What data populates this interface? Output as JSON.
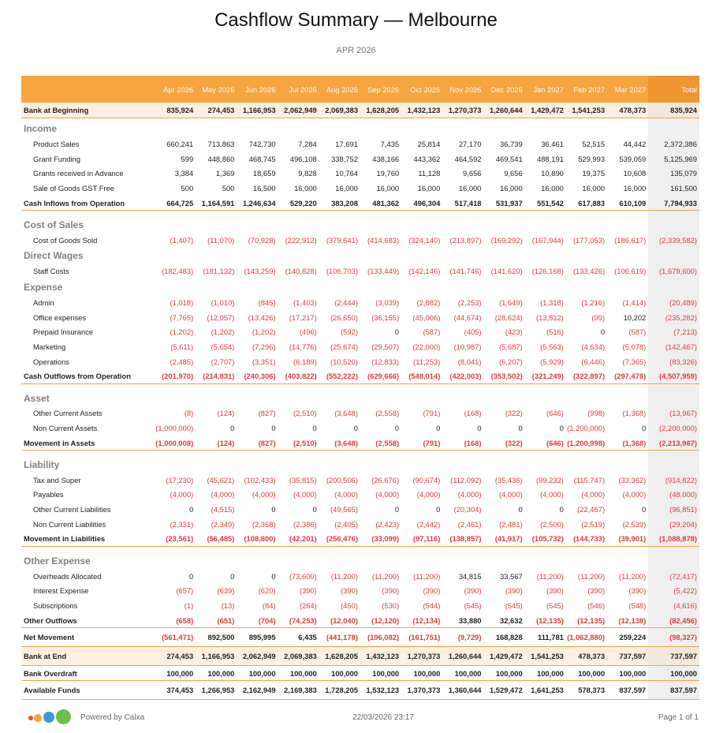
{
  "header": {
    "title": "Cashflow Summary — Melbourne",
    "subtitle": "APR 2026"
  },
  "table": {
    "columns": [
      "Apr 2026",
      "May 2026",
      "Jun 2026",
      "Jul 2026",
      "Aug 2026",
      "Sep 2026",
      "Oct 2026",
      "Nov 2026",
      "Dec 2026",
      "Jan 2027",
      "Feb 2027",
      "Mar 2027",
      "Total"
    ],
    "opening": {
      "label": "Bank at Beginning",
      "values": [
        "835,924",
        "274,453",
        "1,166,953",
        "2,062,949",
        "2,069,383",
        "1,628,205",
        "1,432,123",
        "1,270,373",
        "1,260,644",
        "1,429,472",
        "1,541,253",
        "478,373",
        "835,924"
      ]
    },
    "groups": [
      {
        "sections": [
          {
            "title": "Income",
            "rows": [
              {
                "label": "Product Sales",
                "values": [
                  "660,241",
                  "713,863",
                  "742,730",
                  "7,284",
                  "17,691",
                  "7,435",
                  "25,814",
                  "27,170",
                  "36,739",
                  "36,461",
                  "52,515",
                  "44,442",
                  "2,372,386"
                ]
              },
              {
                "label": "Grant Funding",
                "values": [
                  "599",
                  "448,860",
                  "468,745",
                  "496,108",
                  "338,752",
                  "438,166",
                  "443,362",
                  "464,592",
                  "469,541",
                  "488,191",
                  "529,993",
                  "539,059",
                  "5,125,969"
                ]
              },
              {
                "label": "Grants received in Advance",
                "values": [
                  "3,384",
                  "1,369",
                  "18,659",
                  "9,828",
                  "10,764",
                  "19,760",
                  "11,128",
                  "9,656",
                  "9,656",
                  "10,890",
                  "19,375",
                  "10,608",
                  "135,079"
                ]
              },
              {
                "label": "Sale of Goods GST Free",
                "values": [
                  "500",
                  "500",
                  "16,500",
                  "16,000",
                  "16,000",
                  "16,000",
                  "16,000",
                  "16,000",
                  "16,000",
                  "16,000",
                  "16,000",
                  "16,000",
                  "161,500"
                ]
              }
            ]
          }
        ],
        "total": {
          "label": "Cash Inflows from Operation",
          "values": [
            "664,725",
            "1,164,591",
            "1,246,634",
            "529,220",
            "383,208",
            "481,362",
            "496,304",
            "517,418",
            "531,937",
            "551,542",
            "617,883",
            "610,109",
            "7,794,933"
          ]
        }
      },
      {
        "sections": [
          {
            "title": "Cost of Sales",
            "rows": [
              {
                "label": "Cost of Goods Sold",
                "values": [
                  "(1,407)",
                  "(11,070)",
                  "(70,928)",
                  "(222,912)",
                  "(379,641)",
                  "(414,683)",
                  "(324,140)",
                  "(213,897)",
                  "(169,292)",
                  "(167,944)",
                  "(177,053)",
                  "(186,617)",
                  "(2,339,582)"
                ]
              }
            ]
          },
          {
            "title": "Direct Wages",
            "rows": [
              {
                "label": "Staff Costs",
                "values": [
                  "(182,483)",
                  "(181,132)",
                  "(143,259)",
                  "(140,828)",
                  "(106,703)",
                  "(133,449)",
                  "(142,146)",
                  "(141,746)",
                  "(141,620)",
                  "(126,168)",
                  "(133,426)",
                  "(106,619)",
                  "(1,679,600)"
                ]
              }
            ]
          },
          {
            "title": "Expense",
            "rows": [
              {
                "label": "Admin",
                "values": [
                  "(1,018)",
                  "(1,010)",
                  "(845)",
                  "(1,403)",
                  "(2,444)",
                  "(3,039)",
                  "(2,882)",
                  "(2,253)",
                  "(1,649)",
                  "(1,318)",
                  "(1,216)",
                  "(1,414)",
                  "(20,489)"
                ]
              },
              {
                "label": "Office expenses",
                "values": [
                  "(7,765)",
                  "(12,057)",
                  "(13,426)",
                  "(17,217)",
                  "(26,650)",
                  "(36,155)",
                  "(45,006)",
                  "(44,674)",
                  "(28,624)",
                  "(13,812)",
                  "(99)",
                  "10,202",
                  "(235,282)"
                ]
              },
              {
                "label": "Prepaid Insurance",
                "values": [
                  "(1,202)",
                  "(1,202)",
                  "(1,202)",
                  "(496)",
                  "(592)",
                  "0",
                  "(587)",
                  "(405)",
                  "(423)",
                  "(516)",
                  "0",
                  "(587)",
                  "(7,213)"
                ]
              },
              {
                "label": "Marketing",
                "values": [
                  "(5,611)",
                  "(5,654)",
                  "(7,296)",
                  "(14,776)",
                  "(25,674)",
                  "(29,507)",
                  "(22,000)",
                  "(10,987)",
                  "(5,687)",
                  "(5,563)",
                  "(4,634)",
                  "(5,078)",
                  "(142,467)"
                ]
              },
              {
                "label": "Operations",
                "values": [
                  "(2,485)",
                  "(2,707)",
                  "(3,351)",
                  "(6,189)",
                  "(10,520)",
                  "(12,833)",
                  "(11,253)",
                  "(8,041)",
                  "(6,207)",
                  "(5,929)",
                  "(6,446)",
                  "(7,365)",
                  "(83,326)"
                ]
              }
            ]
          }
        ],
        "total": {
          "label": "Cash Outflows from Operation",
          "values": [
            "(201,970)",
            "(214,831)",
            "(240,306)",
            "(403,822)",
            "(552,222)",
            "(629,666)",
            "(548,014)",
            "(422,003)",
            "(353,502)",
            "(321,249)",
            "(322,897)",
            "(297,478)",
            "(4,507,959)"
          ]
        }
      },
      {
        "sections": [
          {
            "title": "Asset",
            "rows": [
              {
                "label": "Other Current Assets",
                "values": [
                  "(8)",
                  "(124)",
                  "(827)",
                  "(2,510)",
                  "(3,648)",
                  "(2,558)",
                  "(791)",
                  "(168)",
                  "(322)",
                  "(646)",
                  "(998)",
                  "(1,368)",
                  "(13,967)"
                ]
              },
              {
                "label": "Non Current Assets",
                "values": [
                  "(1,000,000)",
                  "0",
                  "0",
                  "0",
                  "0",
                  "0",
                  "0",
                  "0",
                  "0",
                  "0",
                  "(1,200,000)",
                  "0",
                  "(2,200,000)"
                ]
              }
            ]
          }
        ],
        "total": {
          "label": "Movement in Assets",
          "values": [
            "(1,000,008)",
            "(124)",
            "(827)",
            "(2,510)",
            "(3,648)",
            "(2,558)",
            "(791)",
            "(168)",
            "(322)",
            "(646)",
            "(1,200,998)",
            "(1,368)",
            "(2,213,967)"
          ]
        }
      },
      {
        "sections": [
          {
            "title": "Liability",
            "rows": [
              {
                "label": "Tax and Super",
                "values": [
                  "(17,230)",
                  "(45,621)",
                  "(102,433)",
                  "(35,815)",
                  "(200,506)",
                  "(26,676)",
                  "(90,674)",
                  "(112,092)",
                  "(35,436)",
                  "(99,232)",
                  "(115,747)",
                  "(33,362)",
                  "(914,822)"
                ]
              },
              {
                "label": "Payables",
                "values": [
                  "(4,000)",
                  "(4,000)",
                  "(4,000)",
                  "(4,000)",
                  "(4,000)",
                  "(4,000)",
                  "(4,000)",
                  "(4,000)",
                  "(4,000)",
                  "(4,000)",
                  "(4,000)",
                  "(4,000)",
                  "(48,000)"
                ]
              },
              {
                "label": "Other Current Liabilities",
                "values": [
                  "0",
                  "(4,515)",
                  "0",
                  "0",
                  "(49,565)",
                  "0",
                  "0",
                  "(20,304)",
                  "0",
                  "0",
                  "(22,467)",
                  "0",
                  "(96,851)"
                ]
              },
              {
                "label": "Non Current Liabilities",
                "values": [
                  "(2,331)",
                  "(2,349)",
                  "(2,368)",
                  "(2,386)",
                  "(2,405)",
                  "(2,423)",
                  "(2,442)",
                  "(2,461)",
                  "(2,481)",
                  "(2,500)",
                  "(2,519)",
                  "(2,539)",
                  "(29,204)"
                ]
              }
            ]
          }
        ],
        "total": {
          "label": "Movement in Liabilities",
          "values": [
            "(23,561)",
            "(56,485)",
            "(108,800)",
            "(42,201)",
            "(256,476)",
            "(33,099)",
            "(97,116)",
            "(138,857)",
            "(41,917)",
            "(105,732)",
            "(144,733)",
            "(39,901)",
            "(1,088,878)"
          ]
        }
      },
      {
        "sections": [
          {
            "title": "Other Expense",
            "rows": [
              {
                "label": "Overheads Allocated",
                "values": [
                  "0",
                  "0",
                  "0",
                  "(73,600)",
                  "(11,200)",
                  "(11,200)",
                  "(11,200)",
                  "34,815",
                  "33,567",
                  "(11,200)",
                  "(11,200)",
                  "(11,200)",
                  "(72,417)"
                ]
              },
              {
                "label": "Interest Expense",
                "values": [
                  "(657)",
                  "(639)",
                  "(620)",
                  "(390)",
                  "(390)",
                  "(390)",
                  "(390)",
                  "(390)",
                  "(390)",
                  "(390)",
                  "(390)",
                  "(390)",
                  "(5,422)"
                ]
              },
              {
                "label": "Subscriptions",
                "values": [
                  "(1)",
                  "(13)",
                  "(84)",
                  "(264)",
                  "(450)",
                  "(530)",
                  "(544)",
                  "(545)",
                  "(545)",
                  "(545)",
                  "(546)",
                  "(548)",
                  "(4,616)"
                ]
              }
            ]
          }
        ],
        "total": {
          "label": "Other Outflows",
          "values": [
            "(658)",
            "(651)",
            "(704)",
            "(74,253)",
            "(12,040)",
            "(12,120)",
            "(12,134)",
            "33,880",
            "32,632",
            "(12,135)",
            "(12,135)",
            "(12,138)",
            "(82,456)"
          ]
        }
      }
    ],
    "closing": [
      {
        "label": "Net Movement",
        "values": [
          "(561,471)",
          "892,500",
          "895,995",
          "6,435",
          "(441,178)",
          "(196,082)",
          "(161,751)",
          "(9,729)",
          "168,828",
          "111,781",
          "(1,062,880)",
          "259,224",
          "(98,327)"
        ]
      },
      {
        "label": "Bank at End",
        "values": [
          "274,453",
          "1,166,953",
          "2,062,949",
          "2,069,383",
          "1,628,205",
          "1,432,123",
          "1,270,373",
          "1,260,644",
          "1,429,472",
          "1,541,253",
          "478,373",
          "737,597",
          "737,597"
        ]
      },
      {
        "label": "Bank Overdraft",
        "values": [
          "100,000",
          "100,000",
          "100,000",
          "100,000",
          "100,000",
          "100,000",
          "100,000",
          "100,000",
          "100,000",
          "100,000",
          "100,000",
          "100,000",
          "100,000"
        ]
      },
      {
        "label": "Available Funds",
        "values": [
          "374,453",
          "1,266,953",
          "2,162,949",
          "2,169,383",
          "1,728,205",
          "1,532,123",
          "1,370,373",
          "1,360,644",
          "1,529,472",
          "1,641,253",
          "578,373",
          "837,597",
          "837,597"
        ]
      }
    ]
  },
  "footer": {
    "powered": "Powered by Calxa",
    "timestamp": "22/03/2026 23:17",
    "page": "Page 1 of 1"
  }
}
